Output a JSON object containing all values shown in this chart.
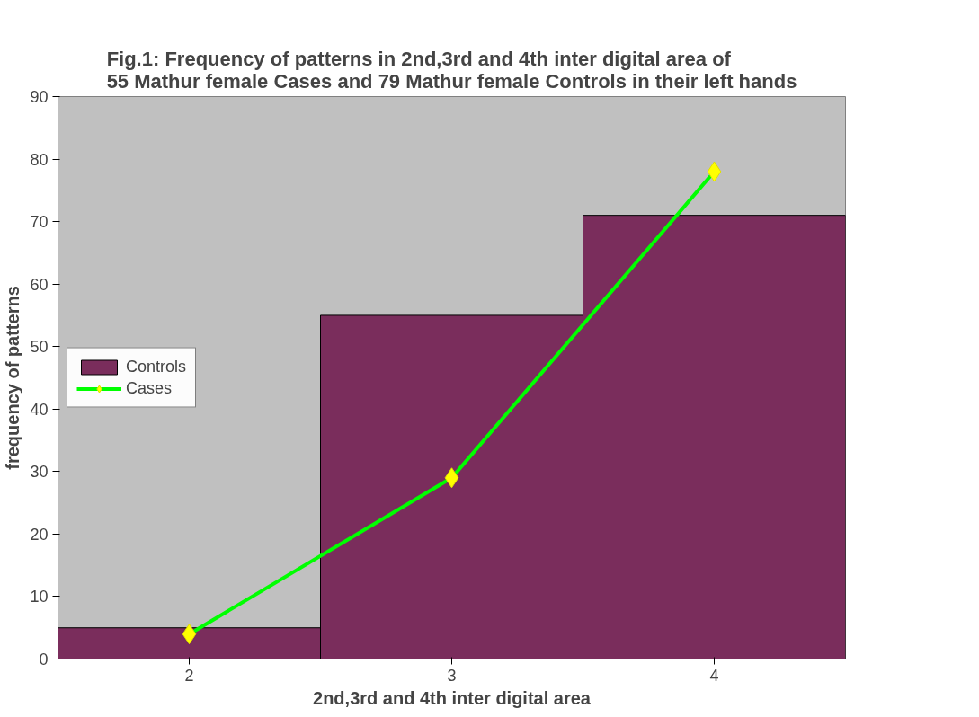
{
  "chart_data": {
    "type": "bar",
    "title": "Fig.1: Frequency of patterns in 2nd,3rd and 4th inter digital area of 55 Mathur female Cases and 79 Mathur female Controls in their left hands",
    "xlabel": "2nd,3rd and 4th inter digital area",
    "ylabel": "frequency of patterns",
    "categories": [
      "2",
      "3",
      "4"
    ],
    "series": [
      {
        "name": "Controls",
        "color": "#7a2d5c",
        "values": [
          5,
          55,
          71
        ]
      },
      {
        "name": "Cases",
        "type": "line",
        "color": "#00ff00",
        "marker": "diamond",
        "values": [
          4,
          29,
          78
        ]
      }
    ],
    "ylim": [
      0,
      90
    ],
    "yticks": [
      0,
      10,
      20,
      30,
      40,
      50,
      60,
      70,
      80,
      90
    ],
    "grid": false,
    "legend": "left"
  }
}
